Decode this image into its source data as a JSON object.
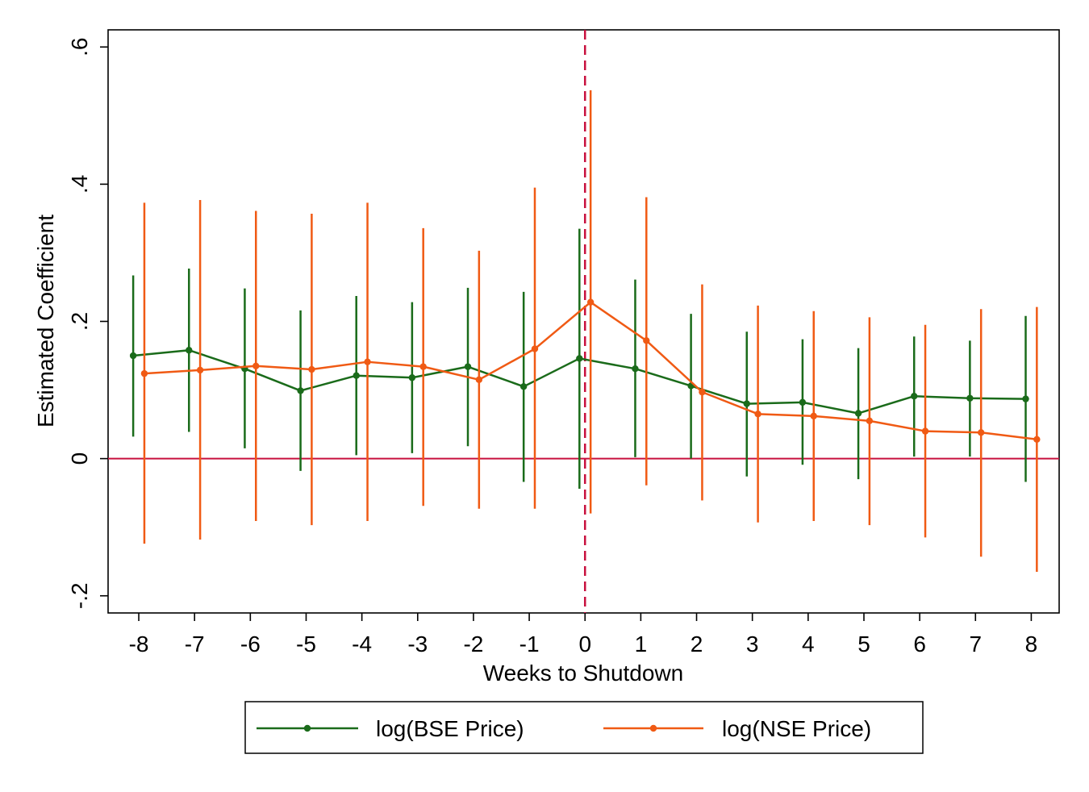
{
  "chart_data": {
    "type": "line",
    "xlabel": "Weeks to Shutdown",
    "ylabel": "Estimated Coefficient",
    "x": [
      -8,
      -7,
      -6,
      -5,
      -4,
      -3,
      -2,
      -1,
      0,
      1,
      2,
      3,
      4,
      5,
      6,
      7,
      8
    ],
    "x_tick_labels": [
      "-8",
      "-7",
      "-6",
      "-5",
      "-4",
      "-3",
      "-2",
      "-1",
      "0",
      "1",
      "2",
      "3",
      "4",
      "5",
      "6",
      "7",
      "8"
    ],
    "y_ticks": [
      -0.2,
      0,
      0.2,
      0.4,
      0.6
    ],
    "y_tick_labels": [
      "-.2",
      "0",
      ".2",
      ".4",
      ".6"
    ],
    "xlim": [
      -8.55,
      8.5
    ],
    "ylim": [
      -0.225,
      0.625
    ],
    "reference_lines": {
      "horizontal": {
        "y": 0,
        "color": "#c8103e",
        "style": "solid"
      },
      "vertical": {
        "x": 0,
        "color": "#c8103e",
        "style": "dashed"
      }
    },
    "grid": false,
    "legend_position": "bottom",
    "series": [
      {
        "name": "log(BSE Price)",
        "color": "#1a6b1a",
        "x_offset": -0.1,
        "values": [
          0.15,
          0.158,
          0.131,
          0.099,
          0.121,
          0.118,
          0.134,
          0.105,
          0.146,
          0.131,
          0.106,
          0.08,
          0.082,
          0.066,
          0.091,
          0.088,
          0.087
        ],
        "ci_low": [
          0.032,
          0.039,
          0.015,
          -0.018,
          0.005,
          0.008,
          0.018,
          -0.034,
          -0.044,
          0.002,
          0.0,
          -0.026,
          -0.009,
          -0.03,
          0.003,
          0.003,
          -0.034
        ],
        "ci_high": [
          0.267,
          0.277,
          0.248,
          0.216,
          0.237,
          0.228,
          0.249,
          0.243,
          0.335,
          0.261,
          0.211,
          0.185,
          0.174,
          0.161,
          0.178,
          0.172,
          0.208
        ]
      },
      {
        "name": "log(NSE Price)",
        "color": "#f05a14",
        "x_offset": 0.1,
        "values": [
          0.124,
          0.129,
          0.135,
          0.13,
          0.141,
          0.134,
          0.115,
          0.16,
          0.228,
          0.172,
          0.097,
          0.065,
          0.062,
          0.055,
          0.04,
          0.038,
          0.028
        ],
        "ci_low": [
          -0.124,
          -0.118,
          -0.091,
          -0.097,
          -0.091,
          -0.069,
          -0.073,
          -0.073,
          -0.08,
          -0.039,
          -0.061,
          -0.093,
          -0.091,
          -0.097,
          -0.115,
          -0.143,
          -0.165
        ],
        "ci_high": [
          0.373,
          0.377,
          0.361,
          0.357,
          0.373,
          0.336,
          0.303,
          0.395,
          0.537,
          0.381,
          0.254,
          0.223,
          0.215,
          0.206,
          0.195,
          0.218,
          0.221
        ]
      }
    ]
  }
}
